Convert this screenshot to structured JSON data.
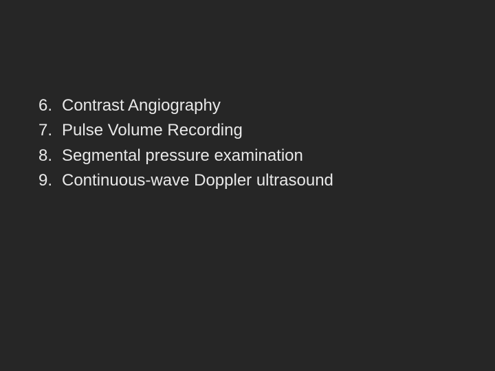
{
  "slide": {
    "background_color": "#262626",
    "text_color": "#e8e8e8",
    "font_family": "Arial, Helvetica, sans-serif",
    "font_size_pt": 18,
    "items": [
      {
        "number": "6.",
        "text": "Contrast Angiography"
      },
      {
        "number": "7.",
        "text": "Pulse Volume Recording"
      },
      {
        "number": "8.",
        "text": "Segmental pressure examination"
      },
      {
        "number": "9.",
        "text": "Continuous-wave Doppler ultrasound"
      }
    ]
  }
}
